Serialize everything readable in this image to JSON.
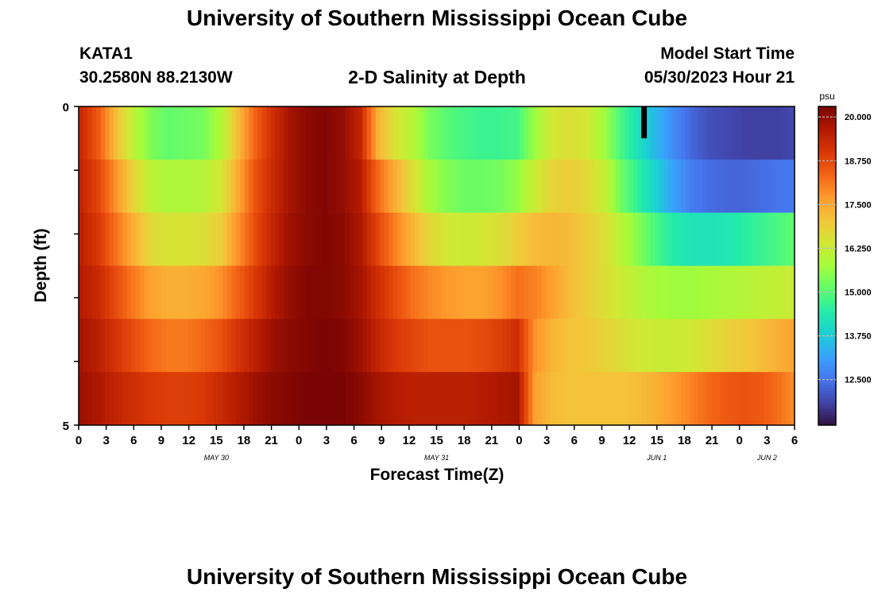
{
  "header": {
    "title": "University of Southern Mississippi Ocean Cube",
    "station": "KATA1",
    "coords": "30.2580N  88.2130W",
    "subtitle": "2-D Salinity at Depth",
    "model_start_label": "Model Start Time",
    "model_start_value": "05/30/2023 Hour 21",
    "footer_title": "University of Southern Mississippi Ocean Cube"
  },
  "chart_data": {
    "type": "heatmap",
    "title": "2-D Salinity at Depth",
    "xlabel": "Forecast Time(Z)",
    "ylabel": "Depth (ft)",
    "colorbar_unit": "psu",
    "ylim": [
      0,
      5
    ],
    "y_tick_labels": [
      "0",
      "5"
    ],
    "x_tick_labels": [
      "0",
      "3",
      "6",
      "9",
      "12",
      "15",
      "18",
      "21",
      "0",
      "3",
      "6",
      "9",
      "12",
      "15",
      "18",
      "21",
      "0",
      "3",
      "6",
      "9",
      "12",
      "15",
      "18",
      "21",
      "0",
      "3",
      "6"
    ],
    "date_labels": [
      {
        "text": "MAY 30",
        "hour": 15
      },
      {
        "text": "MAY 31",
        "hour": 39
      },
      {
        "text": "JUN 1",
        "hour": 63
      },
      {
        "text": "JUN 2",
        "hour": 75
      }
    ],
    "colorbar_range": [
      11.2,
      20.3
    ],
    "colorbar_ticks": [
      "20.000",
      "18.750",
      "17.500",
      "16.250",
      "15.000",
      "13.750",
      "12.500"
    ],
    "colorbar_tick_values": [
      20.0,
      18.75,
      17.5,
      16.25,
      15.0,
      13.75,
      12.5
    ],
    "colorscale": [
      "#30123b",
      "#4145ab",
      "#4675ed",
      "#39a2fc",
      "#1bcfd4",
      "#24eca6",
      "#61fc6c",
      "#a4fc3b",
      "#d1e834",
      "#f3c63a",
      "#fe9b2d",
      "#f36315",
      "#d93806",
      "#b11901",
      "#7a0403"
    ],
    "x_hours_end": 78,
    "series": [
      {
        "name": "0-1 ft",
        "values": [
          19.3,
          18.5,
          17.2,
          16.1,
          15.4,
          15.1,
          15.2,
          15.3,
          15.9,
          17.2,
          18.4,
          19.2,
          19.8,
          20.1,
          20.2,
          20.0,
          19.4,
          17.4,
          16.5,
          16.0,
          15.3,
          15.0,
          14.8,
          14.7,
          14.7,
          14.8,
          15.7,
          16.4,
          16.6,
          16.4,
          15.7,
          14.8,
          14.1,
          13.4,
          12.8,
          12.3,
          12.0,
          11.9,
          11.8,
          11.8,
          11.8,
          11.9
        ]
      },
      {
        "name": "1-2 ft",
        "values": [
          19.4,
          18.8,
          17.8,
          16.8,
          16.1,
          15.9,
          15.9,
          16.0,
          16.4,
          17.5,
          18.6,
          19.3,
          19.8,
          20.1,
          20.2,
          20.0,
          19.6,
          18.3,
          17.4,
          16.6,
          15.8,
          15.4,
          15.2,
          15.2,
          15.3,
          15.6,
          16.3,
          16.8,
          16.9,
          16.7,
          16.2,
          15.2,
          14.5,
          13.8,
          13.1,
          12.6,
          12.4,
          12.3,
          12.3,
          12.4,
          12.5,
          12.6
        ]
      },
      {
        "name": "2-3 ft",
        "values": [
          19.5,
          19.0,
          18.2,
          17.4,
          16.7,
          16.5,
          16.5,
          16.6,
          16.9,
          17.8,
          18.7,
          19.4,
          19.9,
          20.1,
          20.2,
          20.1,
          19.7,
          18.8,
          18.0,
          17.3,
          16.7,
          16.4,
          16.3,
          16.4,
          16.6,
          16.9,
          17.2,
          17.3,
          17.2,
          16.9,
          16.6,
          16.0,
          15.4,
          14.8,
          14.4,
          14.2,
          14.2,
          14.3,
          14.5,
          14.7,
          14.9,
          15.1
        ]
      },
      {
        "name": "3-4 ft",
        "values": [
          19.6,
          19.3,
          18.7,
          18.1,
          17.6,
          17.4,
          17.4,
          17.5,
          17.8,
          18.4,
          19.0,
          19.6,
          20.0,
          20.2,
          20.2,
          20.1,
          19.8,
          19.2,
          18.7,
          18.2,
          17.9,
          17.7,
          17.6,
          17.6,
          17.8,
          18.2,
          18.0,
          17.6,
          17.2,
          16.9,
          16.6,
          16.3,
          16.0,
          15.8,
          15.7,
          15.7,
          15.8,
          15.9,
          16.0,
          16.1,
          16.2,
          16.3
        ]
      },
      {
        "name": "4-5 ft",
        "values": [
          19.8,
          19.5,
          19.1,
          18.7,
          18.3,
          18.1,
          18.1,
          18.3,
          18.6,
          19.1,
          19.5,
          19.9,
          20.1,
          20.2,
          20.3,
          20.2,
          19.9,
          19.4,
          19.0,
          18.8,
          18.6,
          18.6,
          18.6,
          18.7,
          18.9,
          19.2,
          17.8,
          17.3,
          17.1,
          17.0,
          16.8,
          16.6,
          16.4,
          16.3,
          16.3,
          16.4,
          16.6,
          16.8,
          17.0,
          17.2,
          17.4,
          17.6
        ]
      },
      {
        "name": "5 ft",
        "values": [
          19.9,
          19.7,
          19.4,
          19.2,
          19.0,
          18.9,
          18.9,
          19.0,
          19.3,
          19.6,
          19.9,
          20.1,
          20.2,
          20.3,
          20.3,
          20.3,
          20.1,
          19.8,
          19.6,
          19.5,
          19.5,
          19.5,
          19.5,
          19.6,
          19.7,
          19.8,
          17.6,
          17.2,
          17.1,
          17.1,
          17.1,
          17.1,
          17.2,
          17.4,
          17.7,
          18.0,
          18.3,
          18.5,
          18.6,
          18.5,
          18.2,
          17.8
        ]
      }
    ],
    "mask_note": ""
  }
}
